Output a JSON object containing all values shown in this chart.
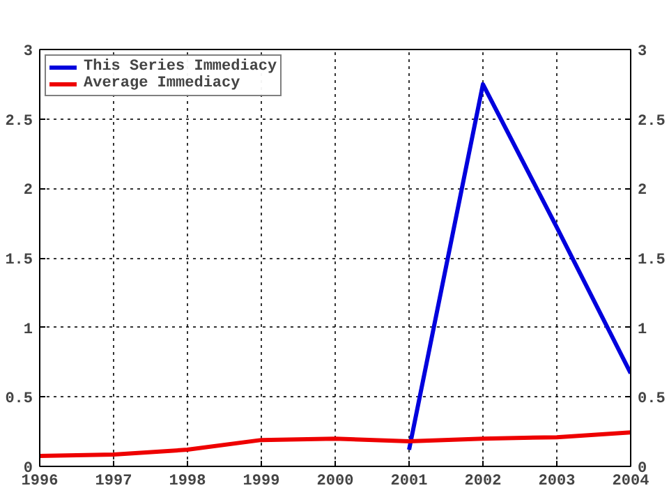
{
  "chart_data": {
    "type": "line",
    "x": [
      1996,
      1997,
      1998,
      1999,
      2000,
      2001,
      2002,
      2003,
      2004
    ],
    "series": [
      {
        "name": "This Series Immediacy",
        "color": "#0000dd",
        "values": [
          null,
          null,
          null,
          null,
          null,
          0.12,
          2.75,
          1.72,
          0.67
        ]
      },
      {
        "name": "Average Immediacy",
        "color": "#ee0000",
        "values": [
          0.075,
          0.085,
          0.12,
          0.19,
          0.2,
          0.18,
          0.2,
          0.21,
          0.245
        ]
      }
    ],
    "xlim": [
      1996,
      2004
    ],
    "xticks": [
      1996,
      1997,
      1998,
      1999,
      2000,
      2001,
      2002,
      2003,
      2004
    ],
    "ylim": [
      0,
      3
    ],
    "yticks": [
      0,
      0.5,
      1,
      1.5,
      2,
      2.5,
      3
    ],
    "y2lim": [
      0,
      3
    ],
    "y2ticks": [
      0,
      0.5,
      1,
      1.5,
      2,
      2.5,
      3
    ],
    "grid": true,
    "legend": "top left",
    "marker": "none",
    "line_style": "solid"
  }
}
